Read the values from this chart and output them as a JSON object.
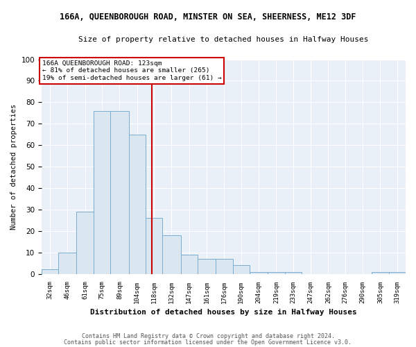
{
  "title": "166A, QUEENBOROUGH ROAD, MINSTER ON SEA, SHEERNESS, ME12 3DF",
  "subtitle": "Size of property relative to detached houses in Halfway Houses",
  "xlabel": "Distribution of detached houses by size in Halfway Houses",
  "ylabel": "Number of detached properties",
  "footer_line1": "Contains HM Land Registry data © Crown copyright and database right 2024.",
  "footer_line2": "Contains public sector information licensed under the Open Government Licence v3.0.",
  "bin_edges": [
    32,
    46,
    61,
    75,
    89,
    104,
    118,
    132,
    147,
    161,
    176,
    190,
    204,
    219,
    233,
    247,
    262,
    276,
    290,
    305,
    319,
    333
  ],
  "bar_heights": [
    2,
    10,
    29,
    76,
    76,
    65,
    26,
    18,
    9,
    7,
    7,
    4,
    1,
    1,
    1,
    0,
    0,
    0,
    0,
    1,
    1
  ],
  "bin_labels": [
    32,
    46,
    61,
    75,
    89,
    104,
    118,
    132,
    147,
    161,
    176,
    190,
    204,
    219,
    233,
    247,
    262,
    276,
    290,
    305,
    319
  ],
  "bar_color": "#dae6f0",
  "bar_edge_color": "#7aadcf",
  "property_value": 123,
  "vline_color": "#cc0000",
  "annotation_text_line1": "166A QUEENBOROUGH ROAD: 123sqm",
  "annotation_text_line2": "← 81% of detached houses are smaller (265)",
  "annotation_text_line3": "19% of semi-detached houses are larger (61) →",
  "annotation_box_color": "#cc0000",
  "ylim": [
    0,
    100
  ],
  "axes_bg_color": "#eaf0f8",
  "background_color": "#ffffff",
  "grid_color": "#ffffff"
}
